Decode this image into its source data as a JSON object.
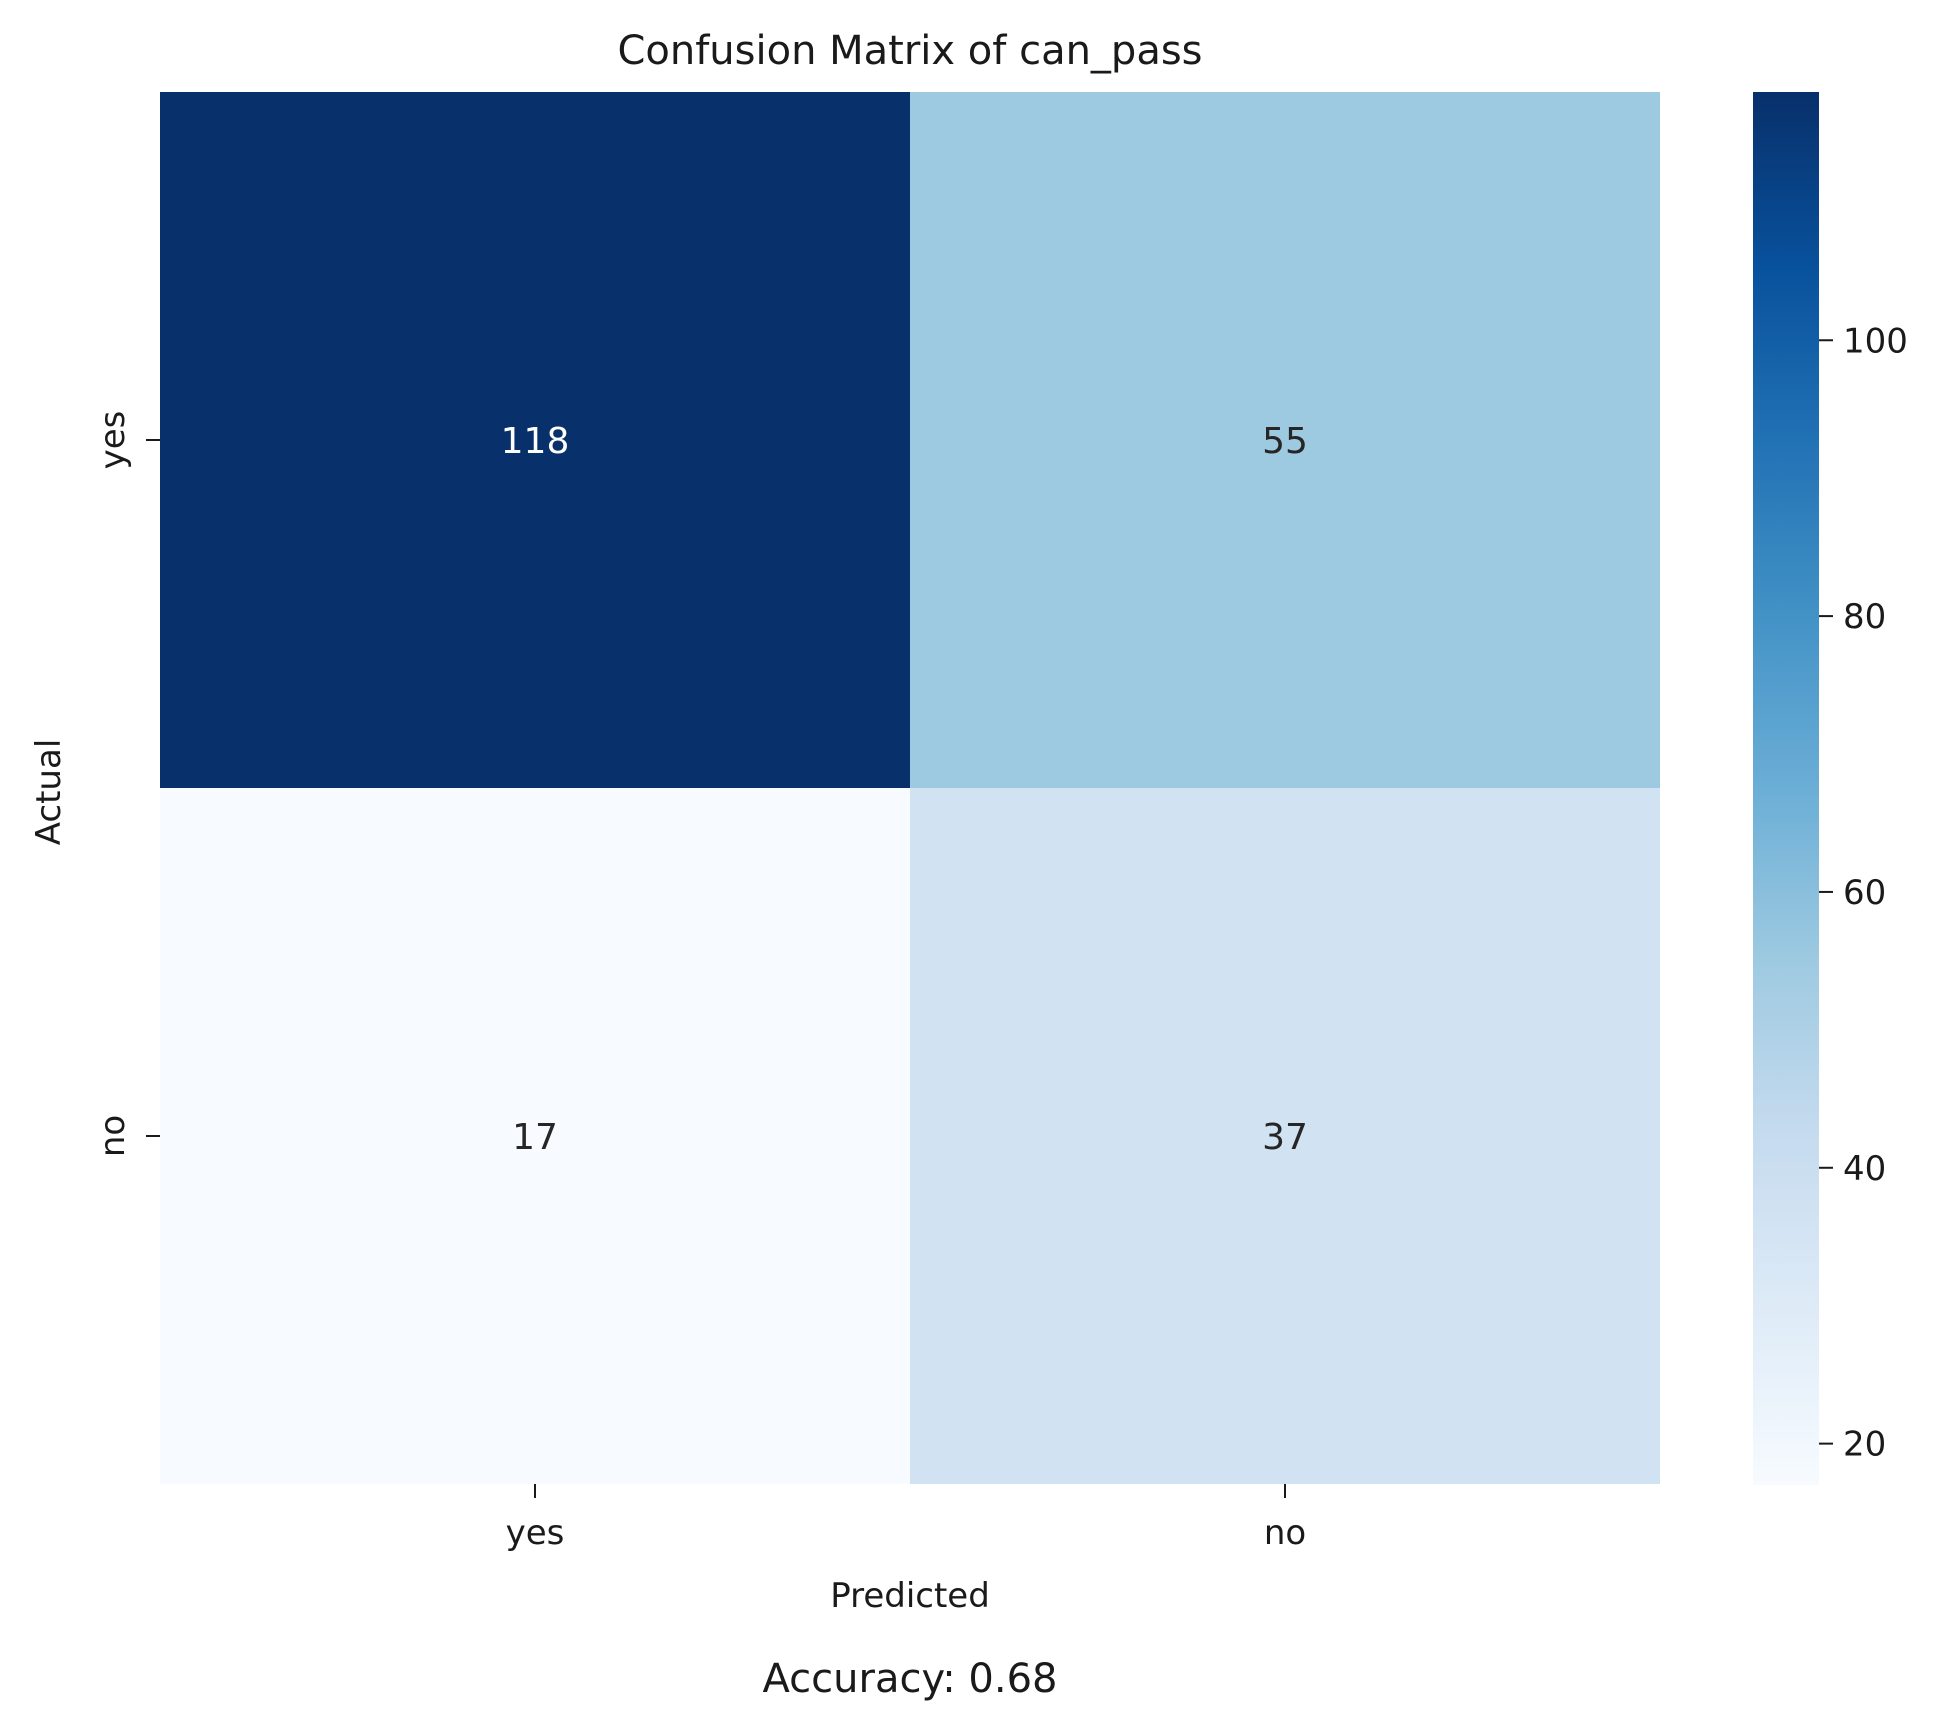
{
  "chart_data": {
    "type": "heatmap",
    "title": "Confusion Matrix of can_pass",
    "xlabel": "Predicted",
    "ylabel": "Actual",
    "x_categories": [
      "yes",
      "no"
    ],
    "y_categories": [
      "yes",
      "no"
    ],
    "values": [
      [
        118,
        55
      ],
      [
        17,
        37
      ]
    ],
    "colormap": "Blues",
    "colorbar": {
      "vmin": 17,
      "vmax": 118,
      "ticks": [
        20,
        40,
        60,
        80,
        100
      ],
      "tick_labels": [
        "20",
        "40",
        "60",
        "80",
        "100"
      ]
    },
    "footer": "Accuracy: 0.68",
    "cell_colors": [
      [
        "#08306b",
        "#9ecae1"
      ],
      [
        "#f7fbff",
        "#d1e2f2"
      ]
    ],
    "annotation_colors": [
      [
        "#ffffff",
        "#262626"
      ],
      [
        "#262626",
        "#262626"
      ]
    ],
    "grid": false
  }
}
